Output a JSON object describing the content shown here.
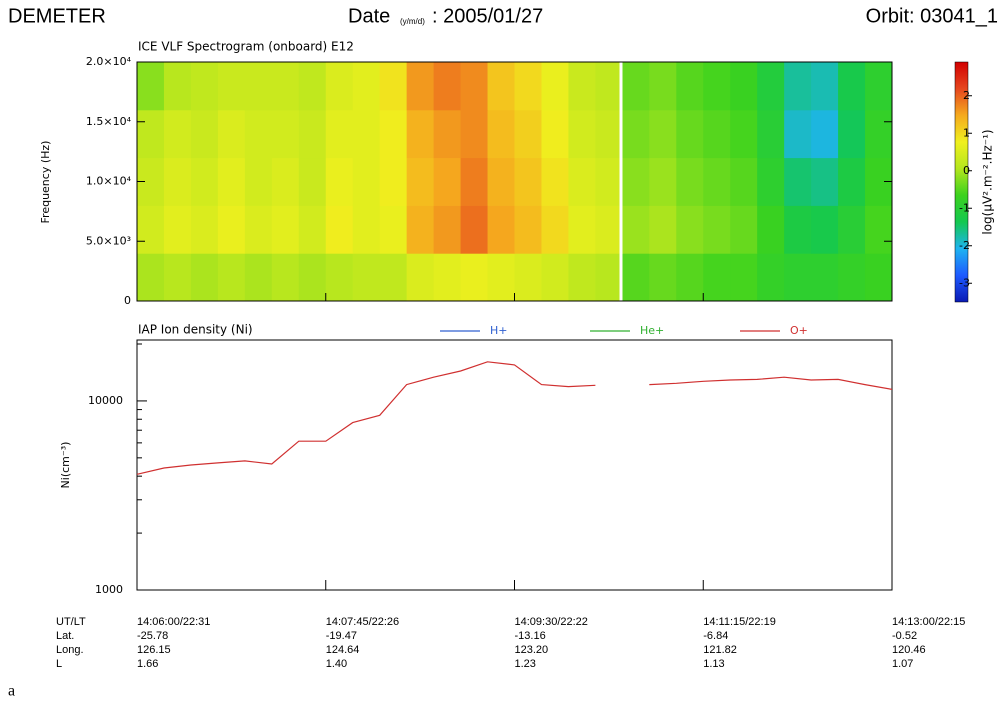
{
  "header": {
    "instrument": "DEMETER",
    "date_label": "Date",
    "date_unit": "(y/m/d)",
    "date": ": 2005/01/27",
    "orbit": "Orbit: 03041_1"
  },
  "chart_data": [
    {
      "type": "heatmap",
      "title": "ICE VLF Spectrogram (onboard) E12",
      "y_label": "Frequency (Hz)",
      "xlim": [
        "14:06:00",
        "14:13:00"
      ],
      "ylim": [
        0,
        20000
      ],
      "yticks": [
        0,
        {
          "value": 5000,
          "label": "5.0×10³"
        },
        {
          "value": 10000,
          "label": "1.0×10⁴"
        },
        {
          "value": 15000,
          "label": "1.5×10⁴"
        },
        {
          "value": 20000,
          "label": "2.0×10⁴"
        }
      ],
      "z": [
        [
          0,
          0.1,
          0,
          0.1,
          0,
          0.1,
          0,
          0.1,
          0.2,
          0.2,
          0.5,
          0.6,
          0.7,
          0.6,
          0.5,
          0.4,
          0.2,
          0.1,
          -0.5,
          -0.4,
          -0.5,
          -0.6,
          -0.6,
          -0.8,
          -0.9,
          -0.9,
          -0.8,
          -0.7
        ],
        [
          0.4,
          0.6,
          0.5,
          0.7,
          0.5,
          0.6,
          0.4,
          0.8,
          0.6,
          0.7,
          1.4,
          1.6,
          1.9,
          1.5,
          1.3,
          1.0,
          0.6,
          0.5,
          -0.1,
          0,
          -0.2,
          -0.3,
          -0.4,
          -0.7,
          -1.2,
          -1.3,
          -1.0,
          -0.6
        ],
        [
          0.3,
          0.5,
          0.4,
          0.6,
          0.4,
          0.5,
          0.3,
          0.7,
          0.6,
          0.8,
          1.3,
          1.5,
          1.8,
          1.4,
          1.2,
          0.9,
          0.5,
          0.4,
          -0.2,
          -0.1,
          -0.3,
          -0.4,
          -0.5,
          -0.9,
          -1.5,
          -1.6,
          -1.2,
          -0.7
        ],
        [
          0.2,
          0.4,
          0.3,
          0.5,
          0.4,
          0.4,
          0.3,
          0.6,
          0.6,
          0.8,
          1.4,
          1.6,
          1.7,
          1.3,
          1.1,
          0.8,
          0.4,
          0.3,
          -0.3,
          -0.2,
          -0.4,
          -0.5,
          -0.6,
          -1.0,
          -1.9,
          -2.0,
          -1.4,
          -0.8
        ],
        [
          -0.2,
          0.1,
          0.2,
          0.3,
          0.3,
          0.3,
          0.2,
          0.5,
          0.6,
          0.9,
          1.6,
          1.8,
          1.7,
          1.2,
          1.0,
          0.7,
          0.3,
          0.2,
          -0.4,
          -0.3,
          -0.5,
          -0.6,
          -0.7,
          -1.1,
          -1.7,
          -1.8,
          -1.3,
          -0.9
        ]
      ],
      "zlim": [
        -3.5,
        2.9
      ],
      "zticks": [
        -3,
        -2,
        -1,
        0,
        1,
        2
      ],
      "colormap": [
        "#0a1ab4",
        "#1e5aff",
        "#1eb4f0",
        "#14c850",
        "#3cd21e",
        "#b4e61e",
        "#f0f01e",
        "#f5aa1e",
        "#e6461e",
        "#d20000"
      ],
      "colorbar_label": "log(μV².m⁻².Hz⁻¹)"
    },
    {
      "type": "line",
      "title": "IAP Ion density (Ni)",
      "y_label": "Ni(cm⁻³)",
      "log_scale_y": true,
      "x": [
        "14:06:00",
        "14:06:15",
        "14:06:30",
        "14:06:45",
        "14:07:00",
        "14:07:15",
        "14:07:30",
        "14:07:45",
        "14:08:00",
        "14:08:15",
        "14:08:30",
        "14:08:45",
        "14:09:00",
        "14:09:15",
        "14:09:30",
        "14:09:45",
        "14:10:00",
        "14:10:15",
        "14:10:30",
        "14:10:45",
        "14:11:00",
        "14:11:15",
        "14:11:30",
        "14:11:45",
        "14:12:00",
        "14:12:15",
        "14:12:30",
        "14:12:45",
        "14:13:00"
      ],
      "xlim": [
        "14:06:00",
        "14:13:00"
      ],
      "xticks": [
        {
          "value": "14:06:00",
          "label": "14:06:00/22:31"
        },
        {
          "value": "14:07:45",
          "label": "14:07:45/22:26"
        },
        {
          "value": "14:09:30",
          "label": "14:09:30/22:22"
        },
        {
          "value": "14:11:15",
          "label": "14:11:15/22:19"
        },
        {
          "value": "14:13:00",
          "label": "14:13:00/22:15"
        }
      ],
      "ylim": [
        1000,
        21000
      ],
      "yticks": [
        1000,
        10000
      ],
      "series": [
        {
          "name": "H+",
          "color": "#3060d0",
          "values": [
            null,
            null,
            null,
            null,
            null,
            null,
            null,
            null,
            null,
            null,
            null,
            null,
            null,
            null,
            null,
            null,
            null,
            null,
            null,
            null,
            null,
            null,
            null,
            null,
            null,
            null,
            null,
            null,
            null
          ]
        },
        {
          "name": "He+",
          "color": "#30b030",
          "values": [
            null,
            null,
            null,
            null,
            null,
            null,
            null,
            null,
            null,
            null,
            null,
            null,
            null,
            null,
            null,
            null,
            null,
            null,
            null,
            null,
            null,
            null,
            null,
            null,
            null,
            null,
            null,
            null,
            null
          ]
        },
        {
          "name": "O+",
          "color": "#d03030",
          "values": [
            4090,
            4420,
            4580,
            4700,
            4820,
            4640,
            6120,
            6120,
            7680,
            8390,
            12200,
            13350,
            14400,
            16100,
            15500,
            12200,
            11900,
            12100,
            null,
            12200,
            12400,
            12700,
            12900,
            13000,
            13350,
            12900,
            13000,
            12200,
            11500
          ]
        }
      ]
    }
  ],
  "ephemeris": {
    "row_labels": [
      "UT/LT",
      "Lat.",
      "Long.",
      "L"
    ],
    "rows": [
      [
        "-25.78",
        "-19.47",
        "-13.16",
        "-6.84",
        "-0.52"
      ],
      [
        "126.15",
        "124.64",
        "123.20",
        "121.82",
        "120.46"
      ],
      [
        "1.66",
        "1.40",
        "1.23",
        "1.13",
        "1.07"
      ]
    ]
  },
  "caption": "a"
}
